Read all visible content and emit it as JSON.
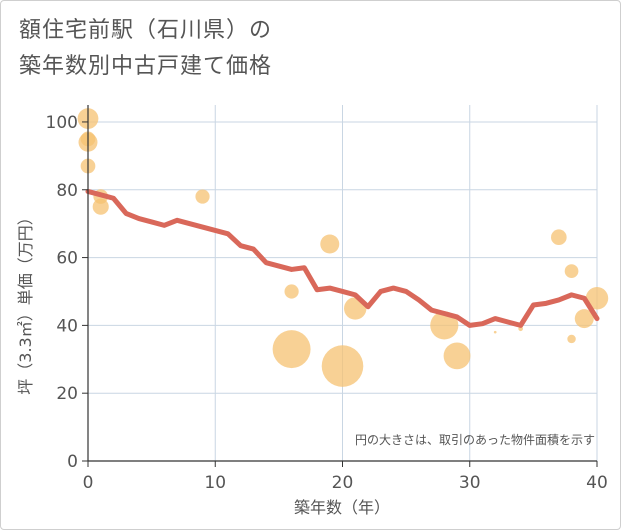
{
  "chart_data": {
    "type": "scatter",
    "title_lines": [
      "額住宅前駅（石川県）の",
      "築年数別中古戸建て価格"
    ],
    "xlabel": "築年数（年）",
    "ylabel": "坪（3.3㎡）単価（万円）",
    "xlim": [
      0,
      40
    ],
    "ylim": [
      0,
      105
    ],
    "xticks": [
      0,
      10,
      20,
      30,
      40
    ],
    "yticks": [
      0,
      20,
      40,
      60,
      80,
      100
    ],
    "grid": true,
    "note": "円の大きさは、取引のあった物件面積を示す",
    "colors": {
      "bubble": "#f5c272",
      "line": "#d9685a",
      "grid": "#c9d6e3",
      "axis": "#333333"
    },
    "series": [
      {
        "kind": "bubble",
        "points": [
          {
            "x": 0,
            "y": 101,
            "size": 3
          },
          {
            "x": 0,
            "y": 94,
            "size": 2.5
          },
          {
            "x": 0,
            "y": 95,
            "size": 1.5
          },
          {
            "x": 0,
            "y": 87,
            "size": 1.5
          },
          {
            "x": 1,
            "y": 78,
            "size": 1.5
          },
          {
            "x": 1,
            "y": 75,
            "size": 1.8
          },
          {
            "x": 9,
            "y": 78,
            "size": 1.4
          },
          {
            "x": 16,
            "y": 50,
            "size": 1.4
          },
          {
            "x": 16,
            "y": 33,
            "size": 10
          },
          {
            "x": 19,
            "y": 64,
            "size": 2.5
          },
          {
            "x": 20,
            "y": 28,
            "size": 12
          },
          {
            "x": 21,
            "y": 45,
            "size": 3.5
          },
          {
            "x": 28,
            "y": 40,
            "size": 5.5
          },
          {
            "x": 29,
            "y": 31,
            "size": 5
          },
          {
            "x": 32,
            "y": 38,
            "size": 0.05
          },
          {
            "x": 34,
            "y": 39,
            "size": 0.15
          },
          {
            "x": 37,
            "y": 66,
            "size": 1.7
          },
          {
            "x": 38,
            "y": 56,
            "size": 1.3
          },
          {
            "x": 38,
            "y": 36,
            "size": 0.5
          },
          {
            "x": 39,
            "y": 42,
            "size": 2.5
          },
          {
            "x": 40,
            "y": 48,
            "size": 3.5
          }
        ]
      },
      {
        "kind": "line",
        "x": [
          0,
          1,
          2,
          3,
          4,
          5,
          6,
          7,
          8,
          9,
          10,
          11,
          12,
          13,
          14,
          15,
          16,
          17,
          18,
          19,
          20,
          21,
          22,
          23,
          24,
          25,
          26,
          27,
          28,
          29,
          30,
          31,
          32,
          33,
          34,
          35,
          36,
          37,
          38,
          39,
          40
        ],
        "y": [
          79.5,
          78.5,
          77.5,
          73,
          71.5,
          70.5,
          69.5,
          71,
          70,
          69,
          68,
          67,
          63.5,
          62.5,
          58.5,
          57.5,
          56.5,
          57,
          50.5,
          51,
          50,
          49,
          45.5,
          50,
          51,
          50,
          47.5,
          44.5,
          43.5,
          42.5,
          40,
          40.5,
          42,
          41,
          40,
          46,
          46.5,
          47.5,
          49,
          48,
          42
        ]
      }
    ]
  }
}
